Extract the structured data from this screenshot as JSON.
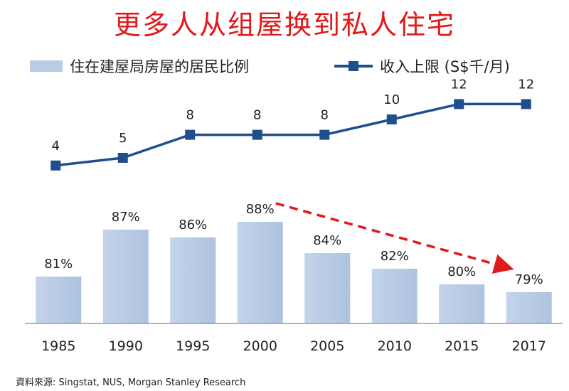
{
  "chart_data": {
    "type": "bar",
    "title": "更多人从组屋换到私人住宅",
    "categories": [
      "1985",
      "1990",
      "1995",
      "2000",
      "2005",
      "2010",
      "2015",
      "2017"
    ],
    "series": [
      {
        "name": "住在建屋局房屋的居民比例",
        "type": "bar",
        "values": [
          81,
          87,
          86,
          88,
          84,
          82,
          80,
          79
        ],
        "labels": [
          "81%",
          "87%",
          "86%",
          "88%",
          "84%",
          "82%",
          "80%",
          "79%"
        ],
        "color": "#b9cce6"
      },
      {
        "name": "收入上限 (S$千/月)",
        "type": "line",
        "values": [
          4,
          5,
          8,
          8,
          8,
          10,
          12,
          12
        ],
        "labels": [
          "4",
          "5",
          "8",
          "8",
          "8",
          "10",
          "12",
          "12"
        ],
        "color": "#1f4e8c"
      }
    ],
    "annotations": [
      {
        "type": "dashed-arrow",
        "from": "2000",
        "to": "2017",
        "color": "#e0191b"
      }
    ],
    "source": "資料來源: Singstat, NUS, Morgan Stanley Research"
  }
}
